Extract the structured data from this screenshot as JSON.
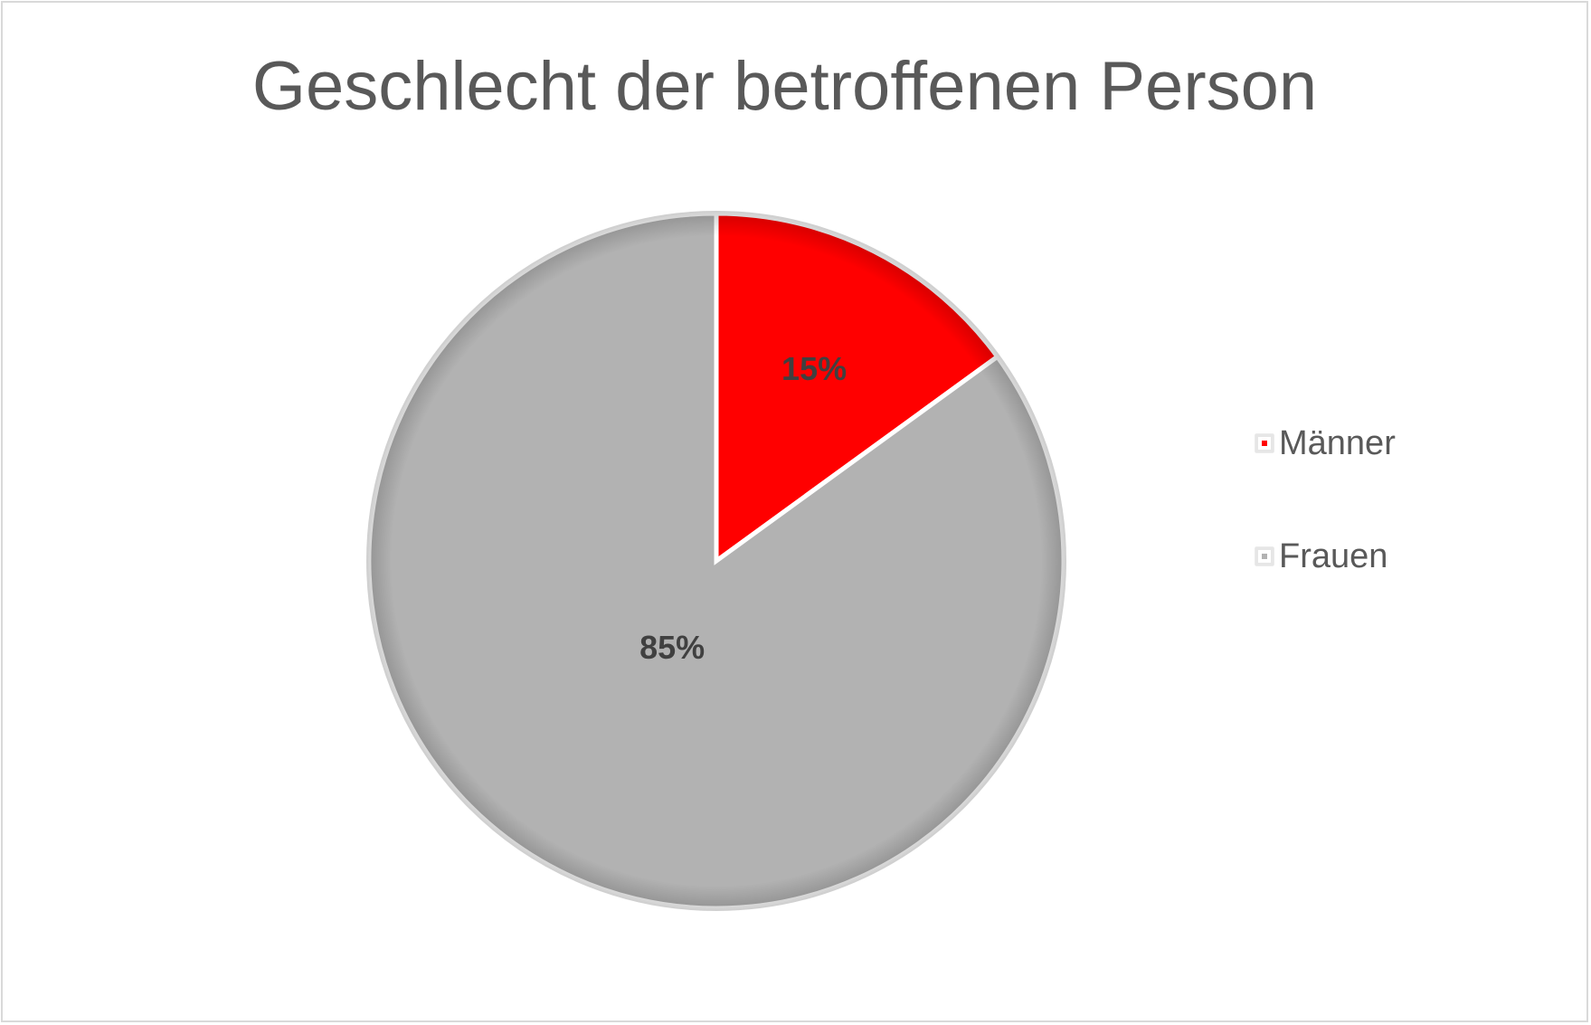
{
  "chart_data": {
    "type": "pie",
    "title": "Geschlecht der betroffenen Person",
    "categories": [
      "Männer",
      "Frauen"
    ],
    "values": [
      15,
      85
    ],
    "labels": [
      "15%",
      "85%"
    ],
    "colors": [
      "#ff0000",
      "#b2b2b2"
    ],
    "legend_position": "right",
    "start_angle": "top, clockwise"
  }
}
